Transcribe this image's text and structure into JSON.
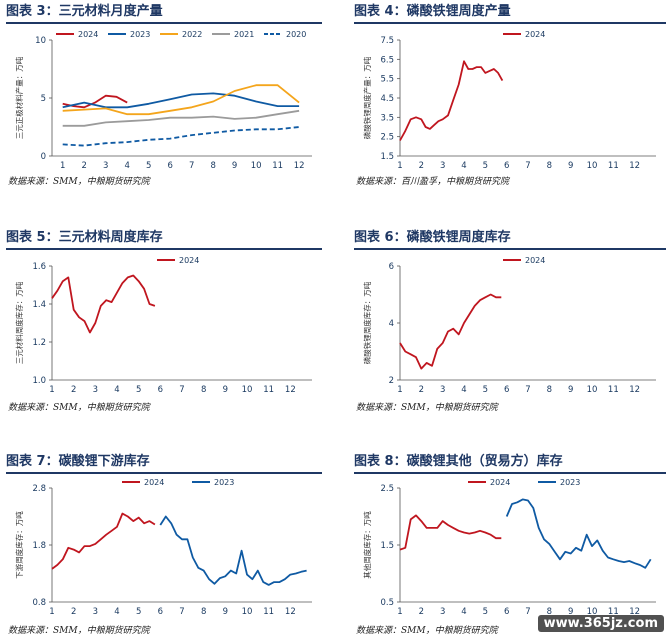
{
  "panels": [
    {
      "title": "图表 3：三元材料月度产量",
      "source": "数据来源：SMM，中粮期货研究院"
    },
    {
      "title": "图表 4：磷酸铁锂周度产量",
      "source": "数据来源：百川盈孚，中粮期货研究院"
    },
    {
      "title": "图表 5：三元材料周度库存",
      "source": "数据来源：SMM，中粮期货研究院"
    },
    {
      "title": "图表 6：磷酸铁锂周度库存",
      "source": "数据来源：SMM，中粮期货研究院"
    },
    {
      "title": "图表 7：碳酸锂下游库存",
      "source": "数据来源：SMM，中粮期货研究院"
    },
    {
      "title": "图表 8：碳酸锂其他（贸易方）库存",
      "source": "数据来源：SMM，中粮期货研究院"
    }
  ],
  "watermark": "www.365jz.com",
  "chart_data": [
    {
      "type": "line",
      "ylabel": "三元正极材料产量：万吨",
      "ylim": [
        0,
        10
      ],
      "yticks": [
        0,
        5,
        10
      ],
      "xlim": [
        0.5,
        12.6
      ],
      "xticks": [
        1,
        2,
        3,
        4,
        5,
        6,
        7,
        8,
        9,
        10,
        11,
        12
      ],
      "legend": "top",
      "series": [
        {
          "name": "2024",
          "color": "#c0161f",
          "dash": false,
          "x": [
            1,
            1.5,
            2,
            2.5,
            3,
            3.5,
            4
          ],
          "y": [
            4.5,
            4.3,
            4.2,
            4.6,
            5.2,
            5.1,
            4.6
          ]
        },
        {
          "name": "2023",
          "color": "#0f5aa3",
          "dash": false,
          "x": [
            1,
            2,
            3,
            4,
            5,
            6,
            7,
            8,
            9,
            10,
            11,
            12
          ],
          "y": [
            4.2,
            4.6,
            4.2,
            4.2,
            4.5,
            4.9,
            5.3,
            5.4,
            5.2,
            4.7,
            4.3,
            4.3
          ]
        },
        {
          "name": "2022",
          "color": "#f4a51c",
          "dash": false,
          "x": [
            1,
            2,
            3,
            4,
            5,
            6,
            7,
            8,
            9,
            10,
            11,
            12
          ],
          "y": [
            3.9,
            4.0,
            4.1,
            3.6,
            3.6,
            3.9,
            4.2,
            4.7,
            5.6,
            6.1,
            6.1,
            4.6
          ]
        },
        {
          "name": "2021",
          "color": "#9b9b9b",
          "dash": false,
          "x": [
            1,
            2,
            3,
            4,
            5,
            6,
            7,
            8,
            9,
            10,
            11,
            12
          ],
          "y": [
            2.6,
            2.6,
            2.9,
            3.0,
            3.1,
            3.3,
            3.3,
            3.4,
            3.2,
            3.3,
            3.6,
            3.9
          ]
        },
        {
          "name": "2020",
          "color": "#0f5aa3",
          "dash": true,
          "x": [
            1,
            2,
            3,
            4,
            5,
            6,
            7,
            8,
            9,
            10,
            11,
            12
          ],
          "y": [
            1.0,
            0.9,
            1.1,
            1.2,
            1.4,
            1.5,
            1.8,
            2.0,
            2.2,
            2.3,
            2.3,
            2.5
          ]
        }
      ]
    },
    {
      "type": "line",
      "ylabel": "磷酸铁锂周度产量：万吨",
      "ylim": [
        1.5,
        7.5
      ],
      "yticks": [
        1.5,
        2.5,
        3.5,
        4.5,
        5.5,
        6.5,
        7.5
      ],
      "yticklabels": [
        "1.5",
        "2.5",
        "3.5",
        "4.5",
        "5.5",
        "6.5",
        "7.5"
      ],
      "yticks_alt": [
        1.5,
        2.4,
        3.3,
        4.2,
        5.1,
        6.0,
        6.9,
        7.8
      ],
      "ytick_values": [
        1.5,
        2.4,
        3.3,
        4.2,
        5.1,
        6.0,
        6.9
      ],
      "xlim": [
        1,
        13
      ],
      "xticks": [
        1,
        2,
        3,
        4,
        5,
        6,
        7,
        8,
        9,
        10,
        11,
        12
      ],
      "legend": "top",
      "series": [
        {
          "name": "2024",
          "color": "#c0161f",
          "dash": false,
          "x": [
            1,
            1.25,
            1.5,
            1.75,
            2,
            2.2,
            2.4,
            2.6,
            2.8,
            3,
            3.25,
            3.5,
            3.75,
            4,
            4.2,
            4.4,
            4.6,
            4.8,
            5,
            5.2,
            5.4,
            5.6,
            5.8
          ],
          "y": [
            2.3,
            2.8,
            3.4,
            3.5,
            3.4,
            3.0,
            2.9,
            3.1,
            3.3,
            3.4,
            3.6,
            4.4,
            5.2,
            6.4,
            6.0,
            6.0,
            6.1,
            6.1,
            5.8,
            5.9,
            6.0,
            5.8,
            5.4
          ]
        }
      ]
    },
    {
      "type": "line",
      "ylabel": "三元材料周度库存：万吨",
      "ylim": [
        1.0,
        1.6
      ],
      "yticks": [
        1.0,
        1.2,
        1.4,
        1.6
      ],
      "xlim": [
        1,
        13
      ],
      "xticks": [
        1,
        2,
        3,
        4,
        5,
        6,
        7,
        8,
        9,
        10,
        11,
        12
      ],
      "legend": "top",
      "series": [
        {
          "name": "2024",
          "color": "#c0161f",
          "dash": false,
          "x": [
            1,
            1.25,
            1.5,
            1.75,
            2,
            2.25,
            2.5,
            2.75,
            3,
            3.25,
            3.5,
            3.75,
            4,
            4.25,
            4.5,
            4.75,
            5,
            5.25,
            5.5,
            5.75
          ],
          "y": [
            1.43,
            1.47,
            1.52,
            1.54,
            1.37,
            1.33,
            1.31,
            1.25,
            1.3,
            1.39,
            1.42,
            1.41,
            1.46,
            1.51,
            1.54,
            1.55,
            1.52,
            1.48,
            1.4,
            1.39
          ]
        }
      ]
    },
    {
      "type": "line",
      "ylabel": "磷酸铁锂周度库存：万吨",
      "ylim": [
        2.0,
        6.0
      ],
      "yticks": [
        2.0,
        4.0,
        6.0
      ],
      "xlim": [
        1,
        13
      ],
      "xticks": [
        1,
        2,
        3,
        4,
        5,
        6,
        7,
        8,
        9,
        10,
        11,
        12
      ],
      "legend": "top",
      "series": [
        {
          "name": "2024",
          "color": "#c0161f",
          "dash": false,
          "x": [
            1,
            1.25,
            1.5,
            1.75,
            2,
            2.25,
            2.5,
            2.75,
            3,
            3.25,
            3.5,
            3.75,
            4,
            4.25,
            4.5,
            4.75,
            5,
            5.25,
            5.5,
            5.75
          ],
          "y": [
            3.3,
            3.0,
            2.9,
            2.8,
            2.4,
            2.6,
            2.5,
            3.1,
            3.3,
            3.7,
            3.8,
            3.6,
            4.0,
            4.3,
            4.6,
            4.8,
            4.9,
            5.0,
            4.9,
            4.9
          ]
        }
      ]
    },
    {
      "type": "line",
      "ylabel": "下游周度库存：万吨",
      "ylim": [
        0.8,
        2.8
      ],
      "yticks": [
        0.8,
        1.8,
        2.8
      ],
      "xlim": [
        1,
        13
      ],
      "xticks": [
        1,
        2,
        3,
        4,
        5,
        6,
        7,
        8,
        9,
        10,
        11,
        12
      ],
      "legend": "top",
      "series": [
        {
          "name": "2024",
          "color": "#c0161f",
          "dash": false,
          "x": [
            1,
            1.25,
            1.5,
            1.75,
            2,
            2.25,
            2.5,
            2.75,
            3,
            3.25,
            3.5,
            3.75,
            4,
            4.25,
            4.5,
            4.75,
            5,
            5.25,
            5.5,
            5.75
          ],
          "y": [
            1.38,
            1.45,
            1.55,
            1.75,
            1.72,
            1.67,
            1.78,
            1.78,
            1.82,
            1.9,
            1.98,
            2.05,
            2.12,
            2.35,
            2.3,
            2.22,
            2.28,
            2.18,
            2.22,
            2.16
          ]
        },
        {
          "name": "2023",
          "color": "#0f5aa3",
          "dash": false,
          "x": [
            6,
            6.25,
            6.5,
            6.75,
            7,
            7.25,
            7.5,
            7.75,
            8,
            8.25,
            8.5,
            8.75,
            9,
            9.25,
            9.5,
            9.75,
            10,
            10.25,
            10.5,
            10.75,
            11,
            11.25,
            11.5,
            11.75,
            12,
            12.25,
            12.5,
            12.75
          ],
          "y": [
            2.15,
            2.3,
            2.18,
            1.98,
            1.9,
            1.9,
            1.58,
            1.4,
            1.35,
            1.2,
            1.12,
            1.22,
            1.25,
            1.35,
            1.3,
            1.7,
            1.28,
            1.2,
            1.35,
            1.15,
            1.1,
            1.15,
            1.15,
            1.2,
            1.28,
            1.3,
            1.33,
            1.35
          ]
        }
      ]
    },
    {
      "type": "line",
      "ylabel": "其他周度库存：万吨",
      "ylim": [
        0.5,
        2.5
      ],
      "yticks": [
        0.5,
        1.5,
        2.5
      ],
      "xlim": [
        1,
        13
      ],
      "xticks": [
        1,
        2,
        3,
        4,
        5,
        6,
        7,
        8,
        9,
        10,
        11,
        12
      ],
      "legend": "top",
      "series": [
        {
          "name": "2024",
          "color": "#c0161f",
          "dash": false,
          "x": [
            1,
            1.25,
            1.5,
            1.75,
            2,
            2.25,
            2.5,
            2.75,
            3,
            3.25,
            3.5,
            3.75,
            4,
            4.25,
            4.5,
            4.75,
            5,
            5.25,
            5.5,
            5.75
          ],
          "y": [
            1.42,
            1.45,
            1.95,
            2.02,
            1.92,
            1.8,
            1.8,
            1.8,
            1.92,
            1.85,
            1.8,
            1.75,
            1.72,
            1.7,
            1.72,
            1.75,
            1.72,
            1.68,
            1.62,
            1.62
          ]
        },
        {
          "name": "2023",
          "color": "#0f5aa3",
          "dash": false,
          "x": [
            6,
            6.25,
            6.5,
            6.75,
            7,
            7.25,
            7.5,
            7.75,
            8,
            8.25,
            8.5,
            8.75,
            9,
            9.25,
            9.5,
            9.75,
            10,
            10.25,
            10.5,
            10.75,
            11,
            11.25,
            11.5,
            11.75,
            12,
            12.25,
            12.5,
            12.75
          ],
          "y": [
            2.0,
            2.22,
            2.25,
            2.3,
            2.28,
            2.15,
            1.8,
            1.6,
            1.52,
            1.38,
            1.25,
            1.38,
            1.35,
            1.45,
            1.4,
            1.68,
            1.48,
            1.58,
            1.4,
            1.28,
            1.25,
            1.22,
            1.2,
            1.22,
            1.18,
            1.15,
            1.1,
            1.25
          ]
        }
      ]
    }
  ]
}
